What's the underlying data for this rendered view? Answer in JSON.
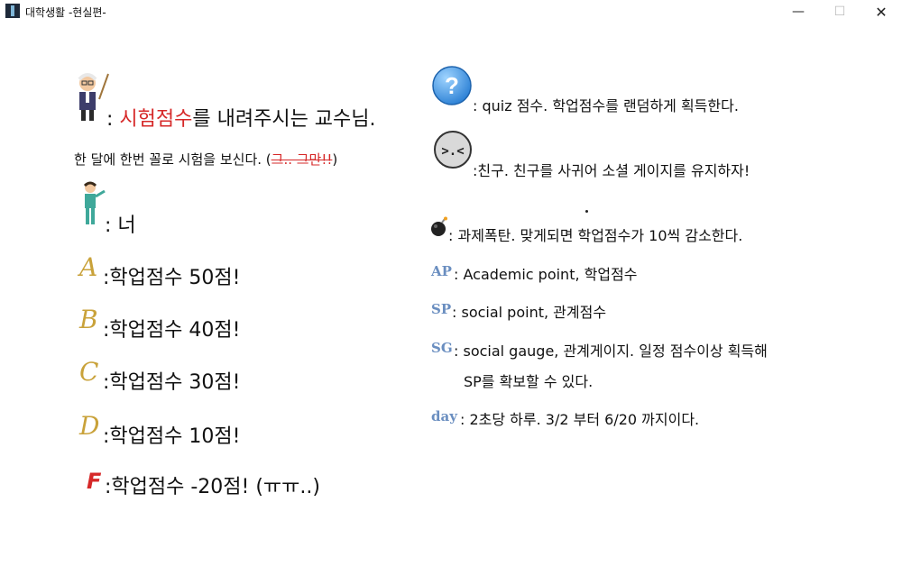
{
  "window": {
    "title": "대학생활 -현실편-",
    "minimize": "—",
    "maximize": "☐",
    "close": "✕"
  },
  "left": {
    "professor": {
      "prefix": ": ",
      "highlight": "시험점수",
      "suffix": "를 내려주시는 교수님."
    },
    "exam_note": {
      "text": "한 달에 한번 꼴로 시험을 보신다. (",
      "strike": "그.. 그만!!",
      "close": ")"
    },
    "player": {
      "text": ": 너"
    },
    "grades": [
      {
        "letter": "A",
        "text": ":학업점수 50점!"
      },
      {
        "letter": "B",
        "text": ":학업점수 40점!"
      },
      {
        "letter": "C",
        "text": ":학업점수 30점!"
      },
      {
        "letter": "D",
        "text": ":학업점수 10점!"
      },
      {
        "letter": "F",
        "text": ":학업점수 -20점! (ㅠㅠ..)"
      }
    ]
  },
  "right": {
    "quiz": {
      "glyph": "?",
      "text": ": quiz 점수. 학업점수를 랜덤하게 획득한다."
    },
    "friend": {
      "glyph": ">.<",
      "text": ":친구. 친구를 사귀어 소셜 게이지를 유지하자!"
    },
    "bomb": {
      "text": ": 과제폭탄. 맞게되면 학업점수가 10씩 감소한다."
    },
    "ap": {
      "abbr": "AP",
      "text": ": Academic point, 학업점수"
    },
    "sp": {
      "abbr": "SP",
      "text": ": social point, 관계점수"
    },
    "sg": {
      "abbr": "SG",
      "text": ": social gauge, 관계게이지. 일정 점수이상 획득해",
      "text2": "SP를 확보할 수 있다."
    },
    "day": {
      "abbr": "day",
      "text": ": 2초당 하루. 3/2 부터 6/20 까지이다."
    }
  },
  "colors": {
    "accent_red": "#d62828",
    "grade_gold": "#c9a23a",
    "abbr_blue": "#6a8ec0",
    "quiz_blue": "#3a8fd8"
  }
}
